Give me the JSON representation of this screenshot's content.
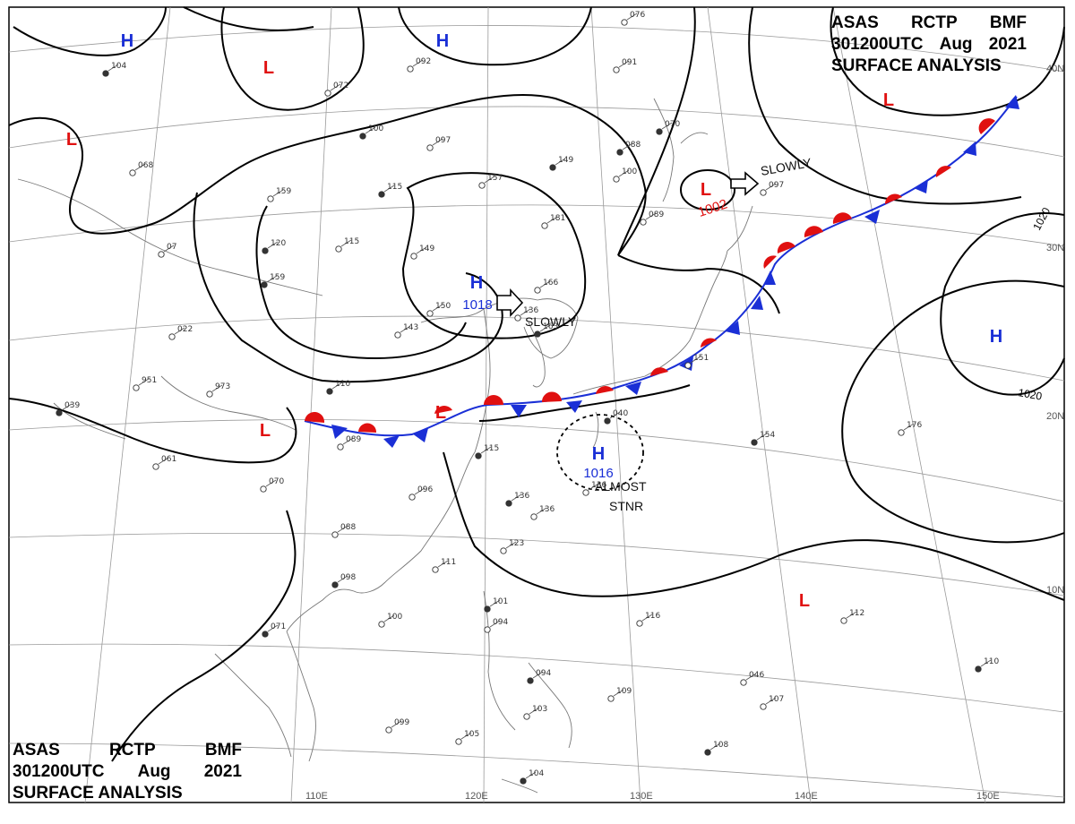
{
  "title_top": {
    "line1": [
      "ASAS",
      "RCTP",
      "BMF"
    ],
    "line2": [
      "301200UTC",
      "Aug",
      "2021"
    ],
    "line3": "SURFACE ANALYSIS"
  },
  "title_bottom": {
    "line1": [
      "ASAS",
      "RCTP",
      "BMF"
    ],
    "line2": [
      "301200UTC",
      "Aug",
      "2021"
    ],
    "line3": "SURFACE ANALYSIS"
  },
  "colors": {
    "high": "#1a2fd6",
    "low": "#e01010",
    "coast": "#777777",
    "grid": "#9a9a9a",
    "isobar": "#000000"
  },
  "longitude_labels": [
    "110E",
    "120E",
    "130E",
    "140E",
    "150E"
  ],
  "latitude_labels": [
    "40N",
    "30N",
    "20N",
    "10N"
  ],
  "isobar_labels": [
    "1020",
    "1020"
  ],
  "pressure_centers": [
    {
      "type": "H",
      "value": ""
    },
    {
      "type": "H",
      "value": ""
    },
    {
      "type": "H",
      "value": "1018"
    },
    {
      "type": "H",
      "value": "1016"
    },
    {
      "type": "H",
      "value": ""
    },
    {
      "type": "L",
      "value": ""
    },
    {
      "type": "L",
      "value": ""
    },
    {
      "type": "L",
      "value": ""
    },
    {
      "type": "L",
      "value": "1002"
    },
    {
      "type": "L",
      "value": ""
    },
    {
      "type": "L",
      "value": ""
    },
    {
      "type": "L",
      "value": ""
    }
  ],
  "motion_labels": [
    "SLOWLY",
    "SLOWLY",
    "ALMOST",
    "STNR"
  ],
  "station_obs": [
    "104",
    "092",
    "072",
    "100",
    "097",
    "157",
    "149",
    "076",
    "091",
    "088",
    "100",
    "089",
    "070",
    "068",
    "159",
    "115",
    "115",
    "149",
    "159",
    "181",
    "166",
    "163",
    "143",
    "150",
    "110",
    "973",
    "951",
    "039",
    "061",
    "089",
    "115",
    "070",
    "096",
    "136",
    "136",
    "123",
    "098",
    "088",
    "111",
    "101",
    "094",
    "100",
    "071",
    "099",
    "105",
    "094",
    "103",
    "109",
    "104",
    "116",
    "151",
    "154",
    "176",
    "112",
    "110",
    "107",
    "046",
    "108",
    "022",
    "07",
    "120",
    "097",
    "136",
    "040",
    "136"
  ]
}
